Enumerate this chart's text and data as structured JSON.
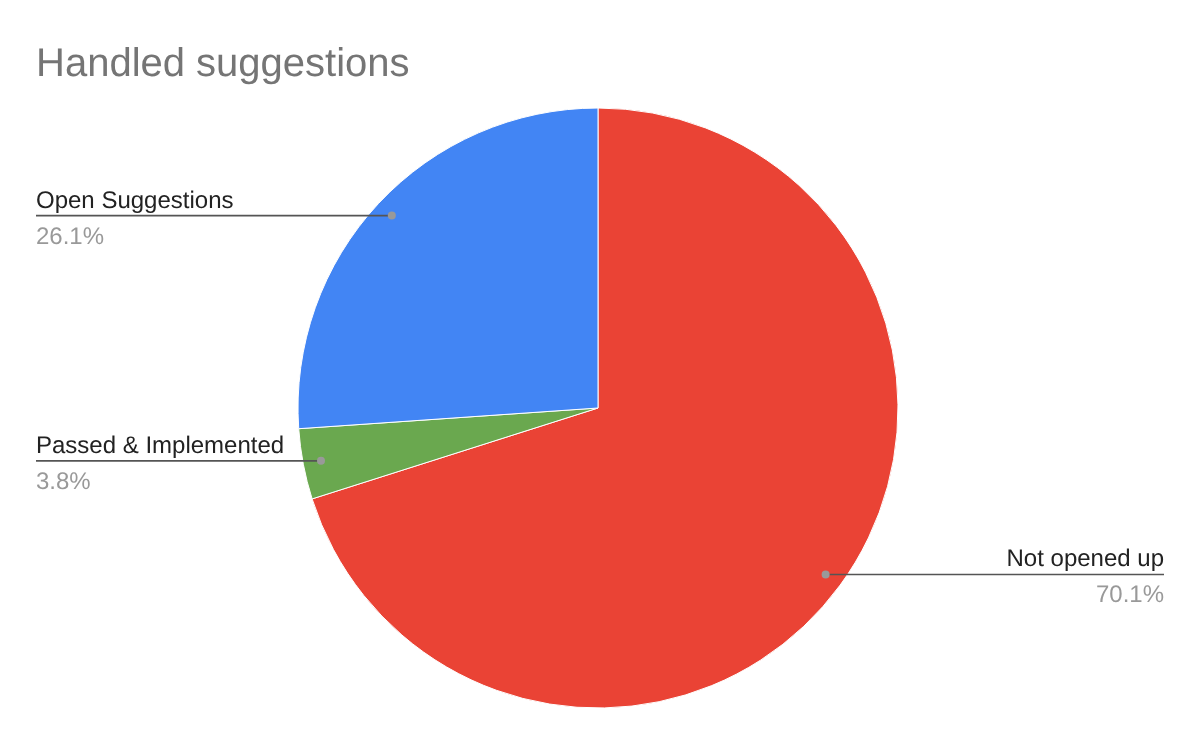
{
  "chart_data": {
    "type": "pie",
    "title": "Handled suggestions",
    "categories": [
      "Not opened up",
      "Passed & Implemented",
      "Open Suggestions"
    ],
    "values": [
      70.1,
      3.8,
      26.1
    ],
    "colors": [
      "#ea4335",
      "#6aa84f",
      "#4285f4"
    ],
    "value_labels": [
      "70.1%",
      "3.8%",
      "26.1%"
    ]
  }
}
